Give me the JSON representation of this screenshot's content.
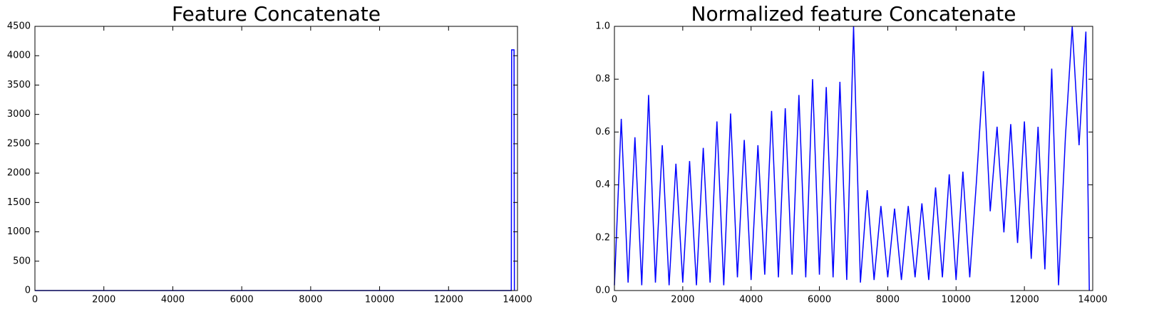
{
  "chart_data": [
    {
      "type": "line",
      "title": "Feature Concatenate",
      "x": [
        0,
        13820,
        13830,
        13900,
        13910
      ],
      "series": [
        {
          "color": "#0000ff",
          "values": [
            0,
            0,
            4100,
            4100,
            0
          ]
        }
      ],
      "xlim": [
        0,
        14000
      ],
      "ylim": [
        0,
        4500
      ],
      "xticks": [
        0,
        2000,
        4000,
        6000,
        8000,
        10000,
        12000,
        14000
      ],
      "yticks": [
        0,
        500,
        1000,
        1500,
        2000,
        2500,
        3000,
        3500,
        4000,
        4500
      ]
    },
    {
      "type": "line",
      "title": "Normalized feature Concatenate",
      "x": [
        0,
        200,
        400,
        600,
        800,
        1000,
        1200,
        1400,
        1600,
        1800,
        2000,
        2200,
        2400,
        2600,
        2800,
        3000,
        3200,
        3400,
        3600,
        3800,
        4000,
        4200,
        4400,
        4600,
        4800,
        5000,
        5200,
        5400,
        5600,
        5800,
        6000,
        6200,
        6400,
        6600,
        6800,
        7000,
        7200,
        7400,
        7600,
        7800,
        8000,
        8200,
        8400,
        8600,
        8800,
        9000,
        9200,
        9400,
        9600,
        9800,
        10000,
        10200,
        10400,
        10600,
        10800,
        11000,
        11200,
        11400,
        11600,
        11800,
        12000,
        12200,
        12400,
        12600,
        12800,
        13000,
        13200,
        13400,
        13600,
        13800,
        13900
      ],
      "series": [
        {
          "color": "#0000ff",
          "values": [
            0.02,
            0.65,
            0.03,
            0.58,
            0.02,
            0.74,
            0.03,
            0.55,
            0.02,
            0.48,
            0.03,
            0.49,
            0.02,
            0.54,
            0.03,
            0.64,
            0.02,
            0.67,
            0.05,
            0.57,
            0.04,
            0.55,
            0.06,
            0.68,
            0.05,
            0.69,
            0.06,
            0.74,
            0.05,
            0.8,
            0.06,
            0.77,
            0.05,
            0.79,
            0.04,
            1.0,
            0.03,
            0.38,
            0.04,
            0.32,
            0.05,
            0.31,
            0.04,
            0.32,
            0.05,
            0.33,
            0.04,
            0.39,
            0.05,
            0.44,
            0.04,
            0.45,
            0.05,
            0.42,
            0.83,
            0.3,
            0.62,
            0.22,
            0.63,
            0.18,
            0.64,
            0.12,
            0.62,
            0.08,
            0.84,
            0.02,
            0.58,
            1.0,
            0.55,
            0.98,
            0.0
          ]
        }
      ],
      "xlim": [
        0,
        14000
      ],
      "ylim": [
        0,
        1
      ],
      "xticks": [
        0,
        2000,
        4000,
        6000,
        8000,
        10000,
        12000,
        14000
      ],
      "yticks": [
        {
          "value": 0,
          "label": "0.0"
        },
        0.2,
        0.4,
        0.6,
        0.8,
        {
          "value": 1,
          "label": "1.0"
        }
      ]
    }
  ]
}
